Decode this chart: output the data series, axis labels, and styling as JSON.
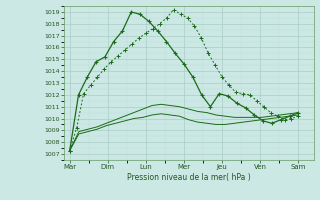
{
  "xlabel": "Pression niveau de la mer( hPa )",
  "background_color": "#cce8e4",
  "grid_color_major": "#aaccc8",
  "grid_color_minor": "#bbddd8",
  "line_color": "#1a6b1a",
  "days": [
    "Mar",
    "Dim",
    "Lun",
    "Mer",
    "Jeu",
    "Ven",
    "Sam"
  ],
  "ylim": [
    1006.5,
    1019.5
  ],
  "yticks": [
    1007,
    1008,
    1009,
    1010,
    1011,
    1012,
    1013,
    1014,
    1015,
    1016,
    1017,
    1018,
    1019
  ],
  "line_flat1": [
    1007.3,
    1008.7,
    1008.9,
    1009.1,
    1009.4,
    1009.6,
    1009.8,
    1010.0,
    1010.1,
    1010.3,
    1010.4,
    1010.3,
    1010.2,
    1009.9,
    1009.7,
    1009.6,
    1009.5,
    1009.5,
    1009.6,
    1009.7,
    1009.8,
    1009.9,
    1010.0,
    1010.1,
    1010.2,
    1010.3
  ],
  "line_flat2": [
    1007.3,
    1008.9,
    1009.1,
    1009.3,
    1009.6,
    1009.9,
    1010.2,
    1010.5,
    1010.8,
    1011.1,
    1011.2,
    1011.1,
    1011.0,
    1010.8,
    1010.6,
    1010.5,
    1010.3,
    1010.2,
    1010.1,
    1010.1,
    1010.1,
    1010.1,
    1010.2,
    1010.3,
    1010.4,
    1010.5
  ],
  "line_dotted": [
    1007.3,
    1009.2,
    1012.1,
    1012.8,
    1013.5,
    1014.2,
    1014.8,
    1015.3,
    1015.8,
    1016.3,
    1016.8,
    1017.2,
    1017.6,
    1018.0,
    1018.5,
    1019.2,
    1018.8,
    1018.5,
    1017.8,
    1016.8,
    1015.5,
    1014.5,
    1013.5,
    1012.8,
    1012.2,
    1012.1,
    1012.0,
    1011.5,
    1011.0,
    1010.5,
    1010.2,
    1009.9,
    1010.0,
    1010.2
  ],
  "line_main": [
    1007.3,
    1012.0,
    1013.5,
    1014.8,
    1015.2,
    1016.5,
    1017.4,
    1019.0,
    1018.8,
    1018.2,
    1017.4,
    1016.5,
    1015.5,
    1014.6,
    1013.5,
    1012.0,
    1011.0,
    1012.1,
    1011.9,
    1011.3,
    1010.9,
    1010.3,
    1009.8,
    1009.6,
    1009.9,
    1010.2,
    1010.5
  ]
}
